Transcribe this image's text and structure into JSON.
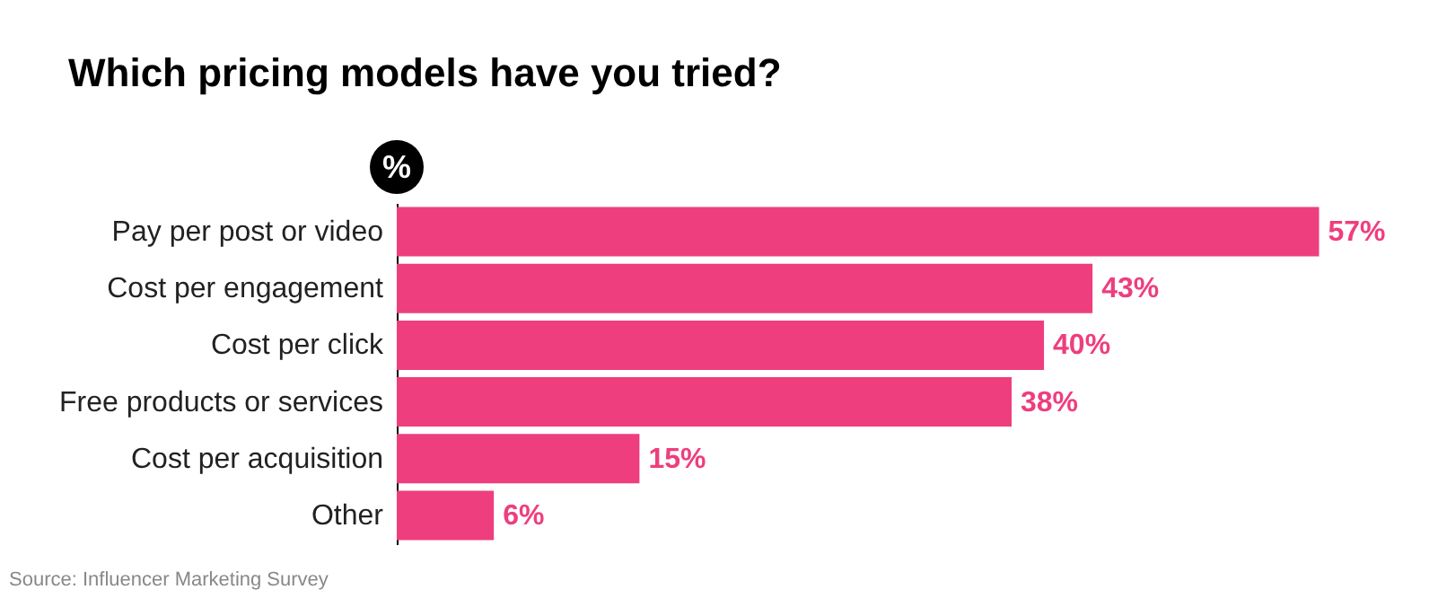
{
  "chart_data": {
    "type": "bar",
    "orientation": "horizontal",
    "title": "Which pricing models have you tried?",
    "xlabel": "%",
    "categories": [
      "Pay per post or video",
      "Cost per engagement",
      "Cost per click",
      "Free products or services",
      "Cost per acquisition",
      "Other"
    ],
    "values": [
      57,
      43,
      40,
      38,
      15,
      6
    ],
    "value_labels": [
      "57%",
      "43%",
      "40%",
      "38%",
      "15%",
      "6%"
    ],
    "color": "#ee3e7e",
    "grid": false,
    "annotations": [
      "Source: Influencer Marketing Survey"
    ]
  }
}
